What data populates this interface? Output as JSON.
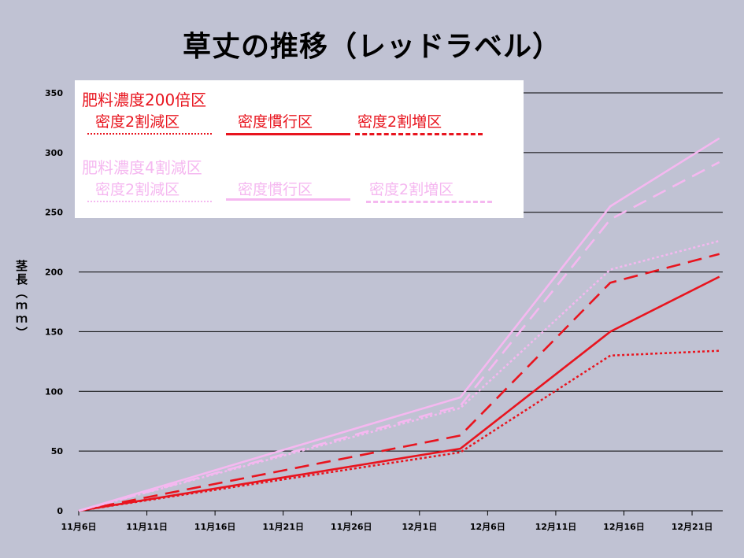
{
  "title": "草丈の推移（レッドラベル）",
  "chart_data": {
    "type": "line",
    "ylabel": "茎長（ｍｍ）",
    "ylim": [
      0,
      350
    ],
    "yticks": [
      0,
      50,
      100,
      150,
      200,
      250,
      300,
      350
    ],
    "xticks": [
      "11月6日",
      "11月11日",
      "11月16日",
      "11月21日",
      "11月26日",
      "12月1日",
      "12月6日",
      "12月11日",
      "12月16日",
      "12月21日"
    ],
    "grid": true,
    "legend_position": "top-left",
    "legend": {
      "groups": [
        {
          "name": "肥料濃度200倍区",
          "color": "#e8141e",
          "items": [
            "密度2割減区",
            "密度慣行区",
            "密度2割増区"
          ]
        },
        {
          "name": "肥料濃度4割減区",
          "color": "#f5b8f0",
          "items": [
            "密度2割減区",
            "密度慣行区",
            "密度2割増区"
          ]
        }
      ]
    },
    "series": [
      {
        "group": "肥料濃度200倍区",
        "name": "密度2割減区",
        "color": "#e8141e",
        "dash": "dot",
        "points": [
          [
            "11月6日",
            0
          ],
          [
            "12月4日",
            49
          ],
          [
            "12月15日",
            130
          ],
          [
            "12月23日",
            134
          ]
        ]
      },
      {
        "group": "肥料濃度200倍区",
        "name": "密度慣行区",
        "color": "#e8141e",
        "dash": "solid",
        "points": [
          [
            "11月6日",
            0
          ],
          [
            "12月4日",
            52
          ],
          [
            "12月15日",
            150
          ],
          [
            "12月23日",
            196
          ]
        ]
      },
      {
        "group": "肥料濃度200倍区",
        "name": "密度2割増区",
        "color": "#e8141e",
        "dash": "dash",
        "points": [
          [
            "11月6日",
            0
          ],
          [
            "12月4日",
            63
          ],
          [
            "12月15日",
            191
          ],
          [
            "12月23日",
            215
          ]
        ]
      },
      {
        "group": "肥料濃度4割減区",
        "name": "密度2割減区",
        "color": "#f5b8f0",
        "dash": "dot",
        "points": [
          [
            "11月6日",
            0
          ],
          [
            "12月4日",
            86
          ],
          [
            "12月15日",
            202
          ],
          [
            "12月23日",
            226
          ]
        ]
      },
      {
        "group": "肥料濃度4割減区",
        "name": "密度慣行区",
        "color": "#f5b8f0",
        "dash": "solid",
        "points": [
          [
            "11月6日",
            0
          ],
          [
            "12月4日",
            95
          ],
          [
            "12月15日",
            255
          ],
          [
            "12月23日",
            312
          ]
        ]
      },
      {
        "group": "肥料濃度4割減区",
        "name": "密度2割増区",
        "color": "#f5b8f0",
        "dash": "dash",
        "points": [
          [
            "11月6日",
            0
          ],
          [
            "12月4日",
            88
          ],
          [
            "12月15日",
            244
          ],
          [
            "12月23日",
            292
          ]
        ]
      }
    ]
  }
}
